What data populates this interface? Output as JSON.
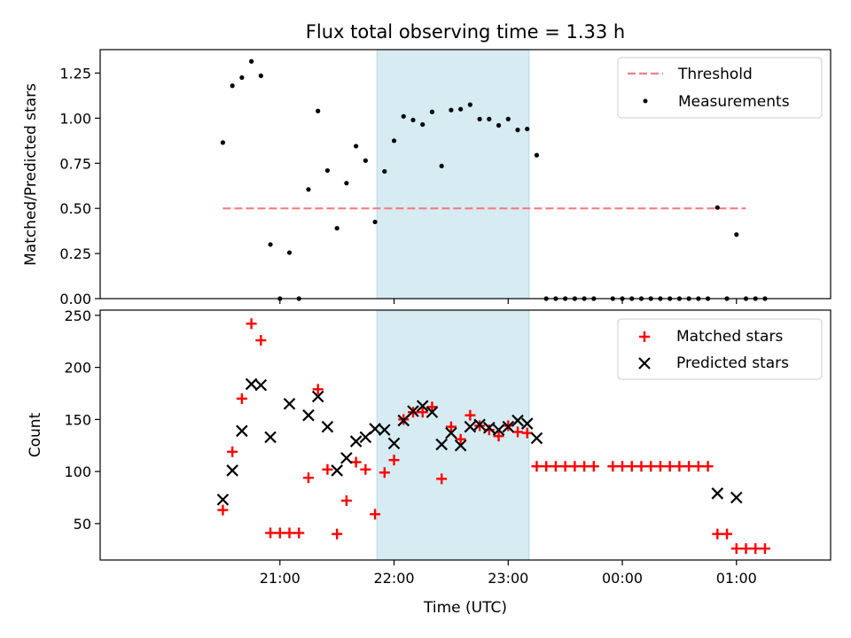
{
  "chart_data": [
    {
      "type": "scatter",
      "title": "Flux total observing time = 1.33 h",
      "ylabel": "Matched/Predicted stars",
      "ylim": [
        0,
        1.38
      ],
      "yticks": [
        "0.00",
        "0.25",
        "0.50",
        "0.75",
        "1.00",
        "1.25"
      ],
      "legend_position": "upper-right",
      "highlight_span": [
        "21:51",
        "23:11"
      ],
      "threshold": {
        "name": "Threshold",
        "value": 0.5,
        "x_start": "20:30",
        "x_end": "01:05",
        "color": "#f08080",
        "style": "dashed"
      },
      "series": [
        {
          "name": "Measurements",
          "color": "#000000",
          "marker": "dot",
          "points": [
            [
              "20:30",
              0.865
            ],
            [
              "20:35",
              1.18
            ],
            [
              "20:40",
              1.225
            ],
            [
              "20:45",
              1.315
            ],
            [
              "20:50",
              1.235
            ],
            [
              "20:55",
              0.3
            ],
            [
              "21:00",
              0.0
            ],
            [
              "21:05",
              0.255
            ],
            [
              "21:10",
              0.0
            ],
            [
              "21:15",
              0.605
            ],
            [
              "21:20",
              1.04
            ],
            [
              "21:25",
              0.71
            ],
            [
              "21:30",
              0.39
            ],
            [
              "21:35",
              0.64
            ],
            [
              "21:40",
              0.845
            ],
            [
              "21:45",
              0.765
            ],
            [
              "21:50",
              0.425
            ],
            [
              "21:55",
              0.705
            ],
            [
              "22:00",
              0.875
            ],
            [
              "22:05",
              1.01
            ],
            [
              "22:10",
              0.99
            ],
            [
              "22:15",
              0.965
            ],
            [
              "22:20",
              1.035
            ],
            [
              "22:25",
              0.735
            ],
            [
              "22:30",
              1.045
            ],
            [
              "22:35",
              1.05
            ],
            [
              "22:40",
              1.075
            ],
            [
              "22:45",
              0.995
            ],
            [
              "22:50",
              0.995
            ],
            [
              "22:55",
              0.96
            ],
            [
              "23:00",
              0.995
            ],
            [
              "23:05",
              0.935
            ],
            [
              "23:10",
              0.94
            ],
            [
              "23:15",
              0.795
            ],
            [
              "23:20",
              0.0
            ],
            [
              "23:25",
              0.0
            ],
            [
              "23:30",
              0.0
            ],
            [
              "23:35",
              0.0
            ],
            [
              "23:40",
              0.0
            ],
            [
              "23:45",
              0.0
            ],
            [
              "23:55",
              0.0
            ],
            [
              "00:00",
              0.0
            ],
            [
              "00:05",
              0.0
            ],
            [
              "00:10",
              0.0
            ],
            [
              "00:15",
              0.0
            ],
            [
              "00:20",
              0.0
            ],
            [
              "00:25",
              0.0
            ],
            [
              "00:30",
              0.0
            ],
            [
              "00:35",
              0.0
            ],
            [
              "00:40",
              0.0
            ],
            [
              "00:45",
              0.0
            ],
            [
              "00:50",
              0.505
            ],
            [
              "00:55",
              0.0
            ],
            [
              "01:00",
              0.355
            ],
            [
              "01:05",
              0.0
            ],
            [
              "01:10",
              0.0
            ],
            [
              "01:15",
              0.0
            ]
          ]
        }
      ]
    },
    {
      "type": "scatter",
      "xlabel": "Time (UTC)",
      "ylabel": "Count",
      "ylim": [
        15,
        255
      ],
      "yticks": [
        "50",
        "100",
        "150",
        "200",
        "250"
      ],
      "xticks": [
        "21:00",
        "22:00",
        "23:00",
        "00:00",
        "01:00"
      ],
      "legend_position": "upper-right",
      "highlight_span": [
        "21:51",
        "23:11"
      ],
      "series": [
        {
          "name": "Matched stars",
          "color": "#ff0000",
          "marker": "plus",
          "points": [
            [
              "20:30",
              63
            ],
            [
              "20:35",
              119
            ],
            [
              "20:40",
              170
            ],
            [
              "20:45",
              242
            ],
            [
              "20:50",
              226
            ],
            [
              "20:55",
              41
            ],
            [
              "21:00",
              41
            ],
            [
              "21:05",
              41
            ],
            [
              "21:10",
              41
            ],
            [
              "21:15",
              94
            ],
            [
              "21:20",
              179
            ],
            [
              "21:25",
              102
            ],
            [
              "21:30",
              40
            ],
            [
              "21:35",
              72
            ],
            [
              "21:40",
              109
            ],
            [
              "21:45",
              102
            ],
            [
              "21:50",
              59
            ],
            [
              "21:55",
              99
            ],
            [
              "22:00",
              111
            ],
            [
              "22:05",
              150
            ],
            [
              "22:10",
              157
            ],
            [
              "22:15",
              157
            ],
            [
              "22:20",
              162
            ],
            [
              "22:25",
              93
            ],
            [
              "22:30",
              143
            ],
            [
              "22:35",
              131
            ],
            [
              "22:40",
              154
            ],
            [
              "22:45",
              144
            ],
            [
              "22:50",
              140
            ],
            [
              "22:55",
              134
            ],
            [
              "23:00",
              144
            ],
            [
              "23:05",
              138
            ],
            [
              "23:10",
              137
            ],
            [
              "23:15",
              105
            ],
            [
              "23:20",
              105
            ],
            [
              "23:25",
              105
            ],
            [
              "23:30",
              105
            ],
            [
              "23:35",
              105
            ],
            [
              "23:40",
              105
            ],
            [
              "23:45",
              105
            ],
            [
              "23:55",
              105
            ],
            [
              "00:00",
              105
            ],
            [
              "00:05",
              105
            ],
            [
              "00:10",
              105
            ],
            [
              "00:15",
              105
            ],
            [
              "00:20",
              105
            ],
            [
              "00:25",
              105
            ],
            [
              "00:30",
              105
            ],
            [
              "00:35",
              105
            ],
            [
              "00:40",
              105
            ],
            [
              "00:45",
              105
            ],
            [
              "00:50",
              40
            ],
            [
              "00:55",
              40
            ],
            [
              "01:00",
              26
            ],
            [
              "01:05",
              26
            ],
            [
              "01:10",
              26
            ],
            [
              "01:15",
              26
            ]
          ]
        },
        {
          "name": "Predicted stars",
          "color": "#000000",
          "marker": "x",
          "points": [
            [
              "20:30",
              73
            ],
            [
              "20:35",
              101
            ],
            [
              "20:40",
              139
            ],
            [
              "20:45",
              184
            ],
            [
              "20:50",
              183
            ],
            [
              "20:55",
              133
            ],
            [
              "21:05",
              165
            ],
            [
              "21:15",
              154
            ],
            [
              "21:20",
              172
            ],
            [
              "21:25",
              143
            ],
            [
              "21:30",
              101
            ],
            [
              "21:35",
              113
            ],
            [
              "21:40",
              129
            ],
            [
              "21:45",
              133
            ],
            [
              "21:50",
              141
            ],
            [
              "21:55",
              140
            ],
            [
              "22:00",
              127
            ],
            [
              "22:05",
              149
            ],
            [
              "22:10",
              158
            ],
            [
              "22:15",
              163
            ],
            [
              "22:20",
              157
            ],
            [
              "22:25",
              126
            ],
            [
              "22:30",
              137
            ],
            [
              "22:35",
              125
            ],
            [
              "22:40",
              143
            ],
            [
              "22:45",
              145
            ],
            [
              "22:50",
              142
            ],
            [
              "22:55",
              140
            ],
            [
              "23:00",
              143
            ],
            [
              "23:05",
              149
            ],
            [
              "23:10",
              146
            ],
            [
              "23:15",
              132
            ],
            [
              "00:50",
              79
            ],
            [
              "01:00",
              75
            ]
          ]
        }
      ]
    }
  ]
}
